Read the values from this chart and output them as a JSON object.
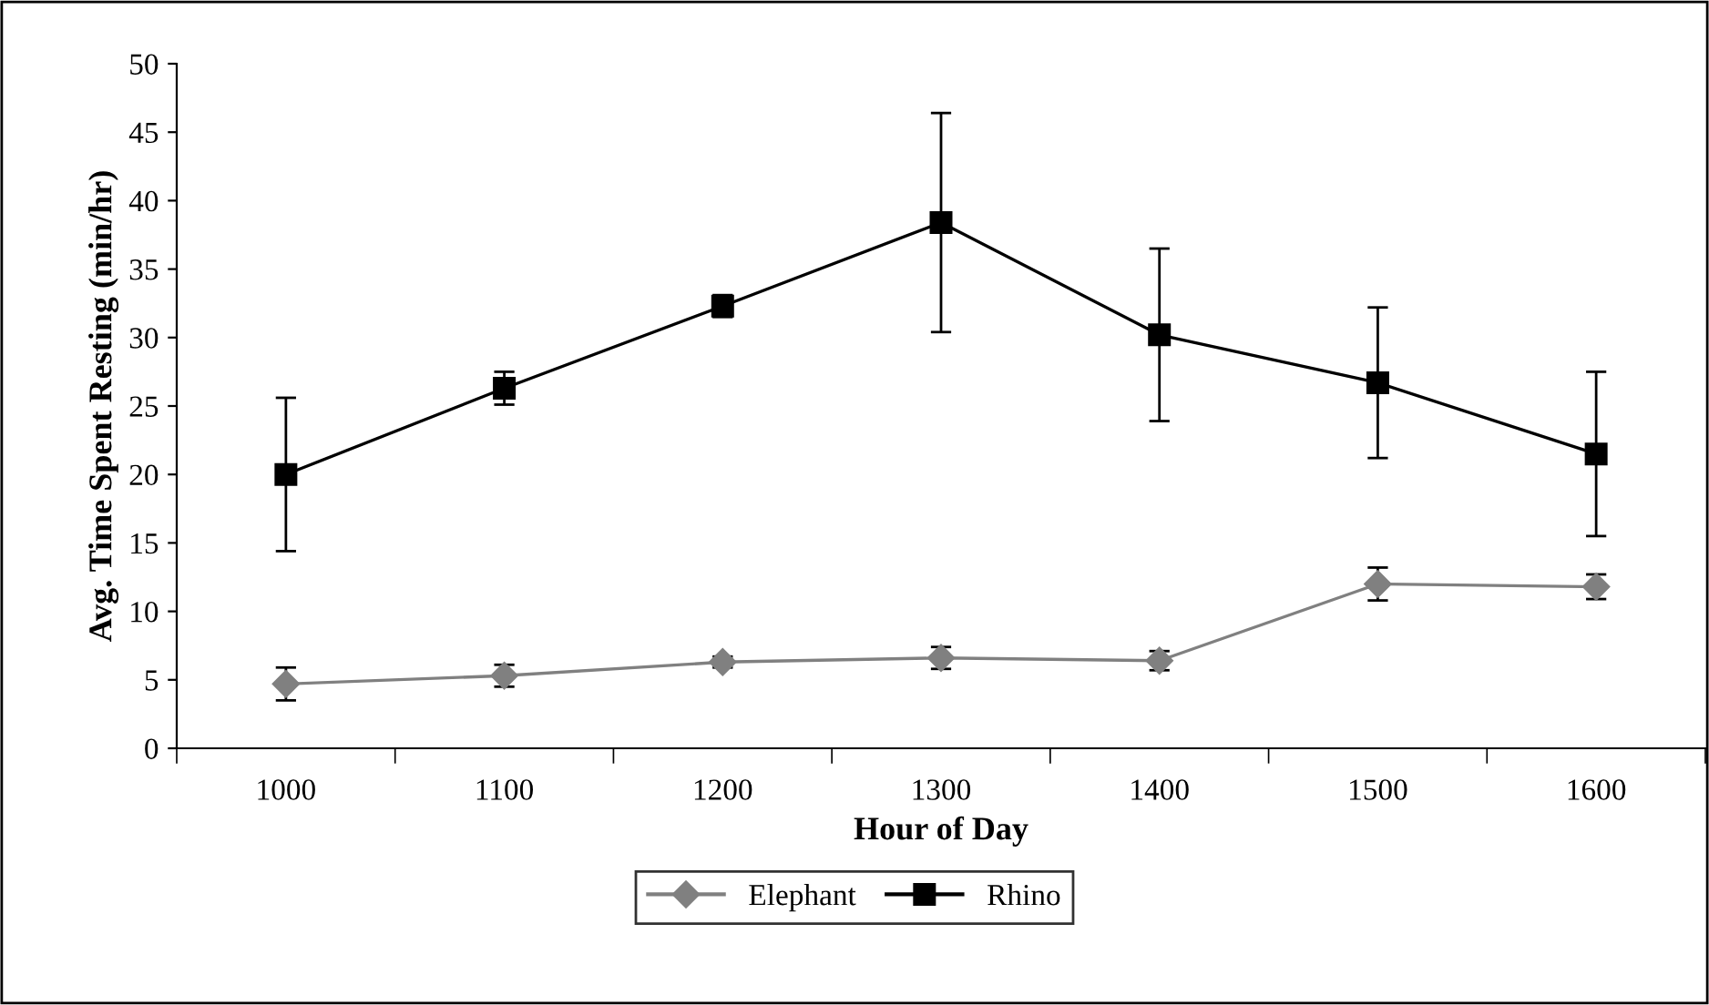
{
  "chart_data": {
    "type": "line",
    "xlabel": "Hour of Day",
    "ylabel": "Avg. Time Spent Resting (min/hr)",
    "categories": [
      "1000",
      "1100",
      "1200",
      "1300",
      "1400",
      "1500",
      "1600"
    ],
    "series": [
      {
        "name": "Elephant",
        "color": "#808080",
        "marker": "diamond",
        "values": [
          4.7,
          5.3,
          6.3,
          6.6,
          6.4,
          12.0,
          11.8
        ],
        "errors": [
          1.2,
          0.8,
          0.4,
          0.8,
          0.7,
          1.2,
          0.9
        ]
      },
      {
        "name": "Rhino",
        "color": "#000000",
        "marker": "square",
        "values": [
          20.0,
          26.3,
          32.3,
          38.4,
          30.2,
          26.7,
          21.5
        ],
        "errors": [
          5.6,
          1.2,
          0.8,
          8.0,
          6.3,
          5.5,
          6.0
        ]
      }
    ],
    "ylim": [
      0,
      50
    ],
    "yticks": [
      0,
      5,
      10,
      15,
      20,
      25,
      30,
      35,
      40,
      45,
      50
    ],
    "grid": false,
    "legend": "bottom",
    "line_style": "solid"
  }
}
